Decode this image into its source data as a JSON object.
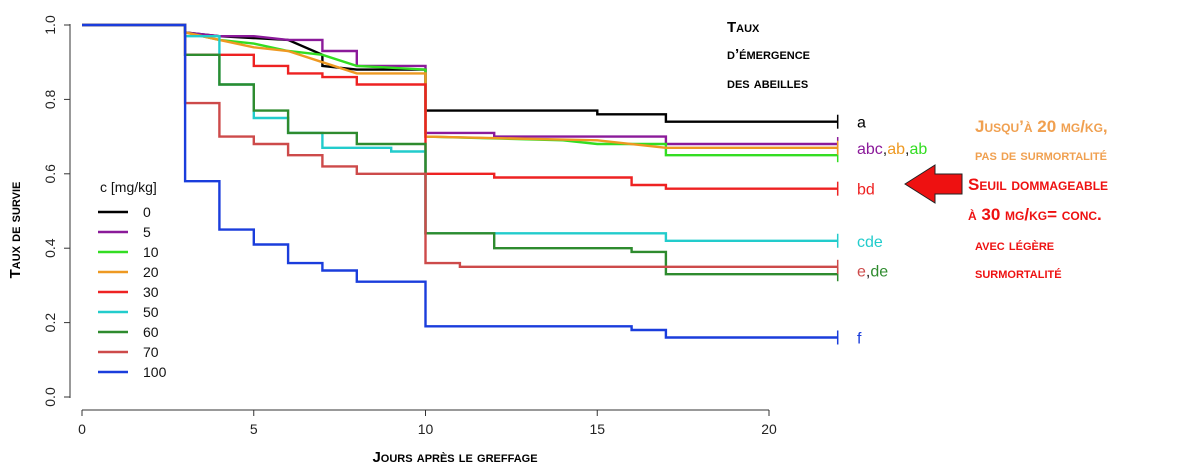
{
  "chart_data": {
    "type": "line",
    "step": true,
    "xlabel": "Jours après le greffage",
    "ylabel": "Taux de survie",
    "title_lines": [
      "Taux",
      "d’émergence",
      "des abeilles"
    ],
    "xlim": [
      0,
      22
    ],
    "ylim": [
      0,
      1.0
    ],
    "x_ticks": [
      "0",
      "5",
      "10",
      "15",
      "20"
    ],
    "y_ticks": [
      "0.0",
      "0.2",
      "0.4",
      "0.6",
      "0.8",
      "1.0"
    ],
    "legend": {
      "title": "c [mg/kg]",
      "placement": "left"
    },
    "series": [
      {
        "name": "0",
        "color": "#000000",
        "points": [
          [
            0,
            1.0
          ],
          [
            3,
            1.0
          ],
          [
            3,
            0.98
          ],
          [
            4,
            0.97
          ],
          [
            6,
            0.96
          ],
          [
            7,
            0.92
          ],
          [
            7,
            0.89
          ],
          [
            8,
            0.88
          ],
          [
            10,
            0.88
          ],
          [
            10,
            0.77
          ],
          [
            15,
            0.77
          ],
          [
            15,
            0.76
          ],
          [
            17,
            0.76
          ],
          [
            17,
            0.74
          ],
          [
            22,
            0.74
          ]
        ]
      },
      {
        "name": "5",
        "color": "#8b1a9a",
        "points": [
          [
            0,
            1.0
          ],
          [
            3,
            1.0
          ],
          [
            3,
            0.98
          ],
          [
            4,
            0.97
          ],
          [
            5,
            0.97
          ],
          [
            6,
            0.96
          ],
          [
            7,
            0.96
          ],
          [
            7,
            0.93
          ],
          [
            8,
            0.93
          ],
          [
            8,
            0.89
          ],
          [
            10,
            0.89
          ],
          [
            10,
            0.71
          ],
          [
            12,
            0.71
          ],
          [
            12,
            0.7
          ],
          [
            17,
            0.7
          ],
          [
            17,
            0.68
          ],
          [
            22,
            0.68
          ]
        ]
      },
      {
        "name": "10",
        "color": "#33dd22",
        "points": [
          [
            0,
            1.0
          ],
          [
            3,
            1.0
          ],
          [
            3,
            0.98
          ],
          [
            4,
            0.96
          ],
          [
            5,
            0.95
          ],
          [
            6,
            0.93
          ],
          [
            7,
            0.92
          ],
          [
            8,
            0.89
          ],
          [
            10,
            0.88
          ],
          [
            10,
            0.7
          ],
          [
            14,
            0.69
          ],
          [
            15,
            0.68
          ],
          [
            17,
            0.68
          ],
          [
            17,
            0.65
          ],
          [
            22,
            0.65
          ]
        ]
      },
      {
        "name": "20",
        "color": "#ee9922",
        "points": [
          [
            0,
            1.0
          ],
          [
            3,
            1.0
          ],
          [
            3,
            0.98
          ],
          [
            4,
            0.96
          ],
          [
            5,
            0.94
          ],
          [
            6,
            0.93
          ],
          [
            7,
            0.9
          ],
          [
            8,
            0.87
          ],
          [
            10,
            0.87
          ],
          [
            10,
            0.7
          ],
          [
            15,
            0.69
          ],
          [
            17,
            0.67
          ],
          [
            22,
            0.67
          ]
        ]
      },
      {
        "name": "30",
        "color": "#ee2222",
        "points": [
          [
            0,
            1.0
          ],
          [
            3,
            1.0
          ],
          [
            3,
            0.92
          ],
          [
            4,
            0.92
          ],
          [
            5,
            0.92
          ],
          [
            5,
            0.89
          ],
          [
            6,
            0.89
          ],
          [
            6,
            0.87
          ],
          [
            7,
            0.87
          ],
          [
            7,
            0.86
          ],
          [
            8,
            0.86
          ],
          [
            8,
            0.84
          ],
          [
            10,
            0.84
          ],
          [
            10,
            0.6
          ],
          [
            12,
            0.6
          ],
          [
            12,
            0.59
          ],
          [
            16,
            0.59
          ],
          [
            16,
            0.57
          ],
          [
            17,
            0.57
          ],
          [
            17,
            0.56
          ],
          [
            22,
            0.56
          ]
        ]
      },
      {
        "name": "50",
        "color": "#22cccc",
        "points": [
          [
            0,
            1.0
          ],
          [
            3,
            1.0
          ],
          [
            3,
            0.97
          ],
          [
            4,
            0.97
          ],
          [
            4,
            0.84
          ],
          [
            5,
            0.84
          ],
          [
            5,
            0.75
          ],
          [
            6,
            0.75
          ],
          [
            6,
            0.71
          ],
          [
            7,
            0.71
          ],
          [
            7,
            0.67
          ],
          [
            9,
            0.67
          ],
          [
            9,
            0.66
          ],
          [
            10,
            0.66
          ],
          [
            10,
            0.44
          ],
          [
            17,
            0.44
          ],
          [
            17,
            0.42
          ],
          [
            22,
            0.42
          ]
        ]
      },
      {
        "name": "60",
        "color": "#2e8b2e",
        "points": [
          [
            0,
            1.0
          ],
          [
            3,
            1.0
          ],
          [
            3,
            0.92
          ],
          [
            4,
            0.92
          ],
          [
            4,
            0.84
          ],
          [
            5,
            0.84
          ],
          [
            5,
            0.77
          ],
          [
            6,
            0.77
          ],
          [
            6,
            0.71
          ],
          [
            7,
            0.71
          ],
          [
            8,
            0.71
          ],
          [
            8,
            0.68
          ],
          [
            10,
            0.68
          ],
          [
            10,
            0.44
          ],
          [
            12,
            0.44
          ],
          [
            12,
            0.4
          ],
          [
            16,
            0.4
          ],
          [
            16,
            0.39
          ],
          [
            17,
            0.39
          ],
          [
            17,
            0.33
          ],
          [
            22,
            0.33
          ]
        ]
      },
      {
        "name": "70",
        "color": "#cd4a4a",
        "points": [
          [
            0,
            1.0
          ],
          [
            3,
            1.0
          ],
          [
            3,
            0.79
          ],
          [
            4,
            0.79
          ],
          [
            4,
            0.7
          ],
          [
            5,
            0.7
          ],
          [
            5,
            0.68
          ],
          [
            6,
            0.68
          ],
          [
            6,
            0.65
          ],
          [
            7,
            0.65
          ],
          [
            7,
            0.62
          ],
          [
            8,
            0.62
          ],
          [
            8,
            0.6
          ],
          [
            10,
            0.6
          ],
          [
            10,
            0.36
          ],
          [
            11,
            0.36
          ],
          [
            11,
            0.35
          ],
          [
            22,
            0.35
          ]
        ]
      },
      {
        "name": "100",
        "color": "#1a3ddc",
        "points": [
          [
            0,
            1.0
          ],
          [
            3,
            1.0
          ],
          [
            3,
            0.58
          ],
          [
            4,
            0.58
          ],
          [
            4,
            0.45
          ],
          [
            5,
            0.45
          ],
          [
            5,
            0.41
          ],
          [
            6,
            0.41
          ],
          [
            6,
            0.36
          ],
          [
            7,
            0.36
          ],
          [
            7,
            0.34
          ],
          [
            8,
            0.34
          ],
          [
            8,
            0.31
          ],
          [
            10,
            0.31
          ],
          [
            10,
            0.19
          ],
          [
            16,
            0.19
          ],
          [
            16,
            0.18
          ],
          [
            17,
            0.18
          ],
          [
            17,
            0.16
          ],
          [
            22,
            0.16
          ]
        ]
      }
    ],
    "group_labels": [
      {
        "y": 0.74,
        "parts": [
          {
            "text": "a",
            "color": "#000000"
          }
        ]
      },
      {
        "y": 0.67,
        "parts": [
          {
            "text": "abc",
            "color": "#8b1a9a"
          },
          {
            "text": ",",
            "color": "#222222"
          },
          {
            "text": "ab",
            "color": "#ee9922"
          },
          {
            "text": ",",
            "color": "#222222"
          },
          {
            "text": "ab",
            "color": "#33dd22"
          }
        ]
      },
      {
        "y": 0.56,
        "parts": [
          {
            "text": "bd",
            "color": "#ee2222"
          }
        ]
      },
      {
        "y": 0.42,
        "parts": [
          {
            "text": "cde",
            "color": "#22cccc"
          }
        ]
      },
      {
        "y": 0.34,
        "parts": [
          {
            "text": "e",
            "color": "#cd4a4a"
          },
          {
            "text": ",",
            "color": "#222222"
          },
          {
            "text": "de",
            "color": "#2e8b2e"
          }
        ]
      },
      {
        "y": 0.16,
        "parts": [
          {
            "text": "f",
            "color": "#1a3ddc"
          }
        ]
      }
    ]
  },
  "notes": {
    "orange": [
      "Jusqu’à 20 mg/kg,",
      "pas de surmortalité"
    ],
    "red": [
      "Seuil dommageable",
      "à 30 mg/kg= conc.",
      "avec légère",
      "surmortalité"
    ],
    "orange_color": "#f0a050",
    "red_color": "#ee1111",
    "arrow_color": "#ee1111"
  }
}
